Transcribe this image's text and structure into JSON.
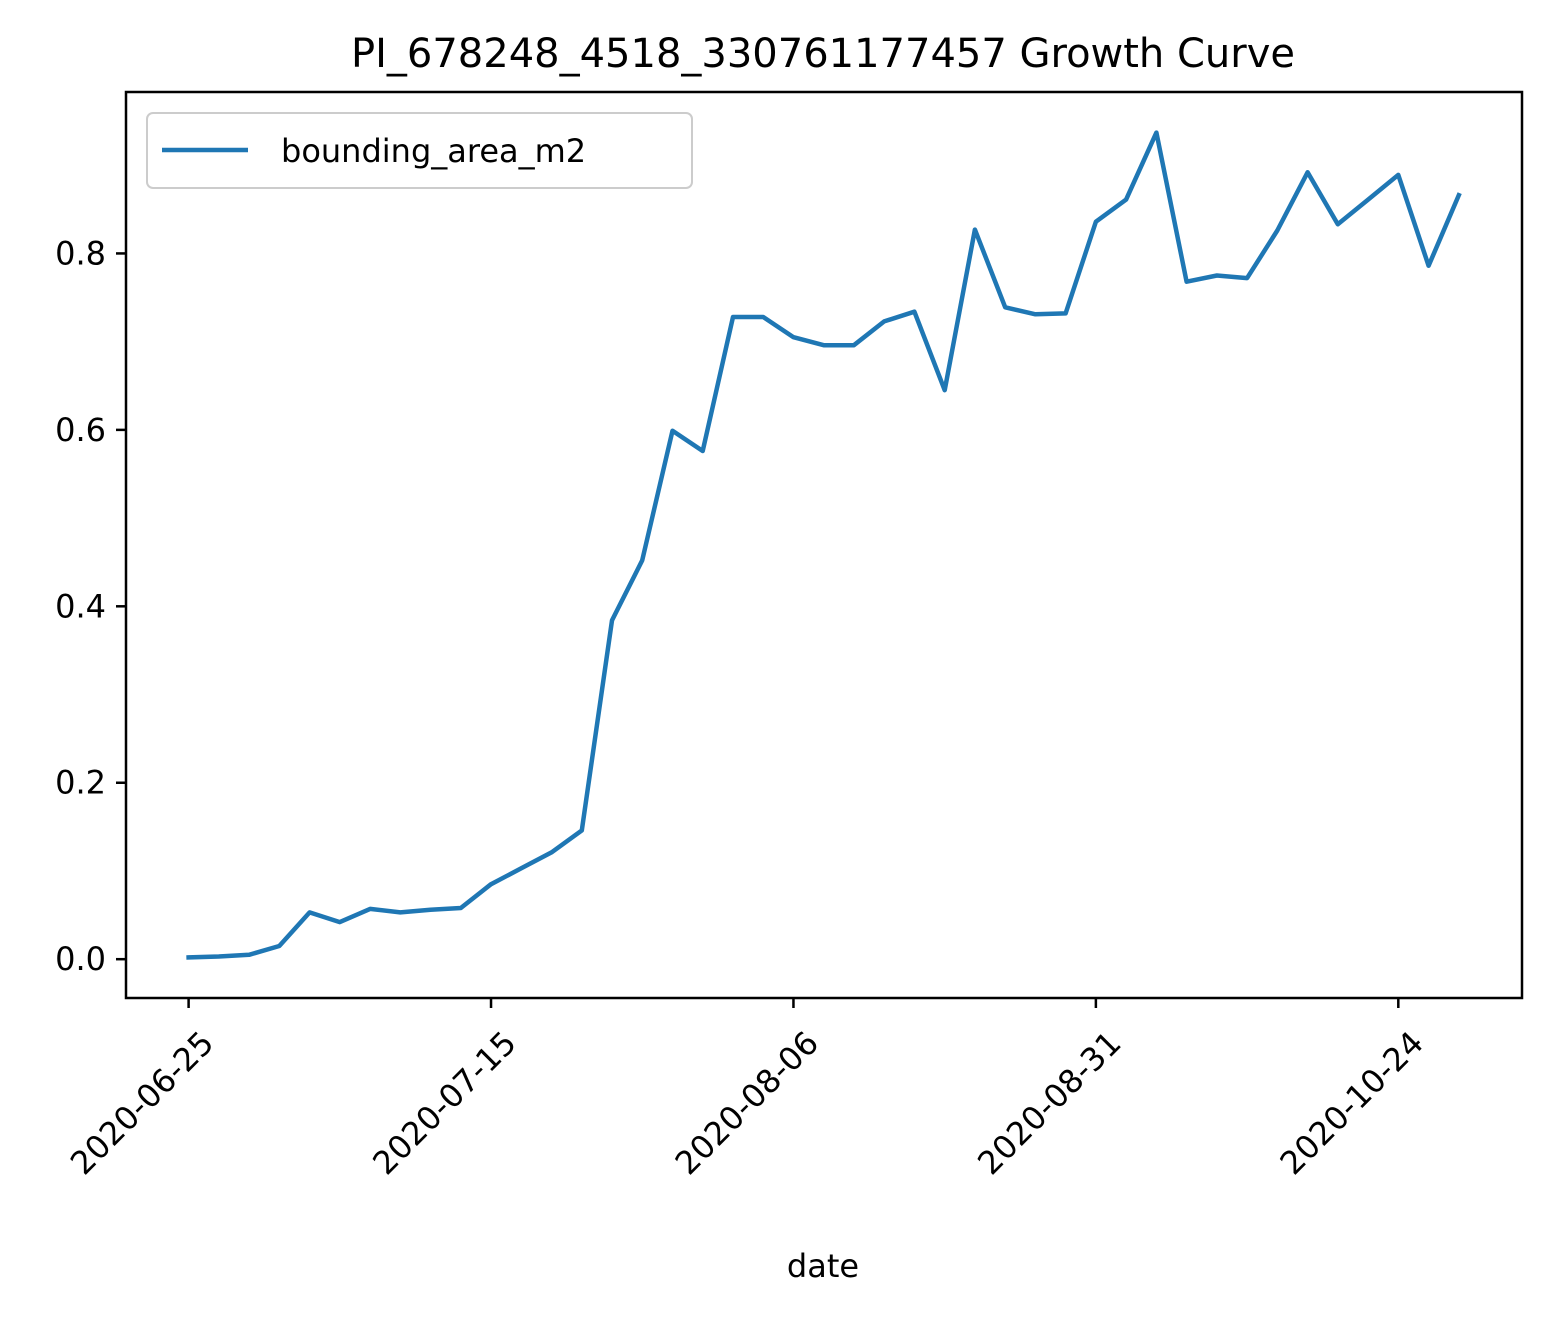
{
  "chart_data": {
    "type": "line",
    "title": "PI_678248_4518_330761177457 Growth Curve",
    "xlabel": "date",
    "ylabel": "",
    "ylim": [
      -0.044,
      0.983
    ],
    "grid": false,
    "legend_position": "top-left",
    "x_tick_labels": [
      "2020-06-25",
      "2020-07-15",
      "2020-08-06",
      "2020-08-31",
      "2020-10-24"
    ],
    "y_ticks": [
      0.0,
      0.2,
      0.4,
      0.6,
      0.8
    ],
    "y_tick_labels": [
      "0.0",
      "0.2",
      "0.4",
      "0.6",
      "0.8"
    ],
    "x_tick_positions": [
      0,
      10,
      20,
      30,
      40
    ],
    "series": [
      {
        "name": "bounding_area_m2",
        "color": "#1f77b4",
        "x": [
          0,
          1,
          2,
          3,
          4,
          5,
          6,
          7,
          8,
          9,
          10,
          11,
          12,
          13,
          14,
          15,
          16,
          17,
          18,
          19,
          20,
          21,
          22,
          23,
          24,
          25,
          26,
          27,
          28,
          29,
          30,
          31,
          32,
          33,
          34,
          35,
          36,
          37,
          38,
          39,
          40,
          41,
          42
        ],
        "values": [
          0.002,
          0.003,
          0.005,
          0.015,
          0.053,
          0.042,
          0.057,
          0.053,
          0.056,
          0.058,
          0.085,
          0.103,
          0.121,
          0.146,
          0.384,
          0.452,
          0.599,
          0.576,
          0.728,
          0.728,
          0.705,
          0.696,
          0.696,
          0.723,
          0.734,
          0.645,
          0.827,
          0.739,
          0.731,
          0.732,
          0.836,
          0.861,
          0.937,
          0.768,
          0.775,
          0.772,
          0.826,
          0.892,
          0.833,
          0.861,
          0.889,
          0.786,
          0.866
        ]
      }
    ]
  }
}
